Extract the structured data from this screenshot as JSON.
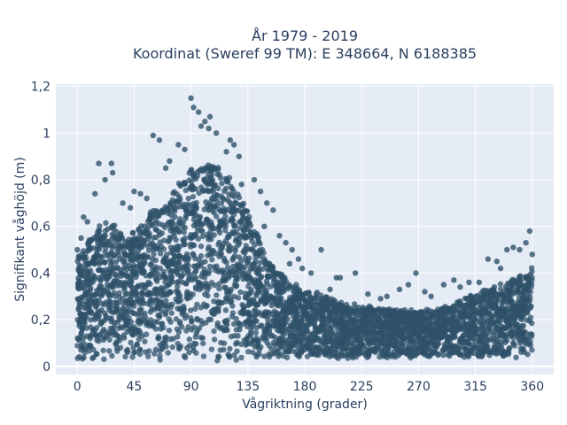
{
  "chart_data": {
    "type": "scatter",
    "title_lines": [
      "År 1979 - 2019",
      "Koordinat (Sweref 99 TM): E 348664, N 6188385"
    ],
    "xlabel": "Vågriktning (grader)",
    "ylabel": "Signifikant våghöjd (m)",
    "xlim": [
      -17,
      377
    ],
    "ylim": [
      -0.035,
      1.21
    ],
    "xticks": [
      0,
      45,
      90,
      135,
      180,
      225,
      270,
      315,
      360
    ],
    "xtick_labels": [
      "0",
      "45",
      "90",
      "135",
      "180",
      "225",
      "270",
      "315",
      "360"
    ],
    "yticks": [
      0,
      0.2,
      0.4,
      0.6,
      0.8,
      1,
      1.2
    ],
    "ytick_labels": [
      "0",
      "0,2",
      "0,4",
      "0,6",
      "0,8",
      "1",
      "1,2"
    ],
    "grid": true,
    "background": "#e5ecf6",
    "marker_color": "#2f5269",
    "envelope": {
      "x": [
        0,
        10,
        20,
        30,
        40,
        50,
        60,
        70,
        80,
        90,
        100,
        110,
        120,
        130,
        140,
        150,
        160,
        170,
        180,
        190,
        200,
        210,
        220,
        230,
        240,
        250,
        260,
        270,
        280,
        290,
        300,
        310,
        320,
        330,
        340,
        350,
        360
      ],
      "y_high": [
        0.47,
        0.55,
        0.62,
        0.6,
        0.55,
        0.6,
        0.68,
        0.7,
        0.78,
        0.84,
        0.87,
        0.87,
        0.82,
        0.72,
        0.6,
        0.47,
        0.4,
        0.35,
        0.33,
        0.31,
        0.29,
        0.27,
        0.26,
        0.25,
        0.25,
        0.24,
        0.24,
        0.24,
        0.24,
        0.25,
        0.27,
        0.3,
        0.32,
        0.34,
        0.36,
        0.39,
        0.42
      ],
      "y_low": [
        0.03,
        0.03,
        0.03,
        0.03,
        0.03,
        0.03,
        0.03,
        0.03,
        0.03,
        0.03,
        0.03,
        0.03,
        0.03,
        0.03,
        0.03,
        0.03,
        0.03,
        0.04,
        0.04,
        0.04,
        0.04,
        0.04,
        0.04,
        0.04,
        0.04,
        0.04,
        0.04,
        0.04,
        0.04,
        0.04,
        0.04,
        0.04,
        0.04,
        0.04,
        0.04,
        0.04,
        0.04
      ]
    },
    "outliers": [
      {
        "x": 90,
        "y": 1.15
      },
      {
        "x": 92,
        "y": 1.11
      },
      {
        "x": 96,
        "y": 1.09
      },
      {
        "x": 101,
        "y": 1.05
      },
      {
        "x": 105,
        "y": 1.07
      },
      {
        "x": 98,
        "y": 1.03
      },
      {
        "x": 104,
        "y": 1.02
      },
      {
        "x": 110,
        "y": 1.0
      },
      {
        "x": 60,
        "y": 0.99
      },
      {
        "x": 65,
        "y": 0.97
      },
      {
        "x": 80,
        "y": 0.95
      },
      {
        "x": 85,
        "y": 0.93
      },
      {
        "x": 121,
        "y": 0.97
      },
      {
        "x": 124,
        "y": 0.95
      },
      {
        "x": 128,
        "y": 0.9
      },
      {
        "x": 118,
        "y": 0.92
      },
      {
        "x": 17,
        "y": 0.87
      },
      {
        "x": 27,
        "y": 0.87
      },
      {
        "x": 28,
        "y": 0.83
      },
      {
        "x": 22,
        "y": 0.8
      },
      {
        "x": 14,
        "y": 0.74
      },
      {
        "x": 45,
        "y": 0.75
      },
      {
        "x": 50,
        "y": 0.74
      },
      {
        "x": 36,
        "y": 0.7
      },
      {
        "x": 42,
        "y": 0.68
      },
      {
        "x": 55,
        "y": 0.72
      },
      {
        "x": 70,
        "y": 0.85
      },
      {
        "x": 73,
        "y": 0.88
      },
      {
        "x": 140,
        "y": 0.8
      },
      {
        "x": 145,
        "y": 0.75
      },
      {
        "x": 150,
        "y": 0.7
      },
      {
        "x": 155,
        "y": 0.67
      },
      {
        "x": 148,
        "y": 0.6
      },
      {
        "x": 160,
        "y": 0.56
      },
      {
        "x": 165,
        "y": 0.53
      },
      {
        "x": 170,
        "y": 0.5
      },
      {
        "x": 175,
        "y": 0.46
      },
      {
        "x": 168,
        "y": 0.44
      },
      {
        "x": 178,
        "y": 0.42
      },
      {
        "x": 185,
        "y": 0.4
      },
      {
        "x": 193,
        "y": 0.5
      },
      {
        "x": 205,
        "y": 0.38
      },
      {
        "x": 208,
        "y": 0.38
      },
      {
        "x": 220,
        "y": 0.4
      },
      {
        "x": 200,
        "y": 0.33
      },
      {
        "x": 230,
        "y": 0.31
      },
      {
        "x": 240,
        "y": 0.29
      },
      {
        "x": 245,
        "y": 0.3
      },
      {
        "x": 255,
        "y": 0.33
      },
      {
        "x": 262,
        "y": 0.35
      },
      {
        "x": 268,
        "y": 0.4
      },
      {
        "x": 275,
        "y": 0.32
      },
      {
        "x": 280,
        "y": 0.3
      },
      {
        "x": 290,
        "y": 0.35
      },
      {
        "x": 298,
        "y": 0.37
      },
      {
        "x": 303,
        "y": 0.34
      },
      {
        "x": 310,
        "y": 0.36
      },
      {
        "x": 318,
        "y": 0.36
      },
      {
        "x": 325,
        "y": 0.46
      },
      {
        "x": 332,
        "y": 0.45
      },
      {
        "x": 340,
        "y": 0.5
      },
      {
        "x": 345,
        "y": 0.51
      },
      {
        "x": 350,
        "y": 0.5
      },
      {
        "x": 355,
        "y": 0.53
      },
      {
        "x": 358,
        "y": 0.58
      },
      {
        "x": 5,
        "y": 0.64
      },
      {
        "x": 8,
        "y": 0.62
      },
      {
        "x": 3,
        "y": 0.55
      },
      {
        "x": 0,
        "y": 0.5
      },
      {
        "x": 360,
        "y": 0.48
      },
      {
        "x": 335,
        "y": 0.42
      },
      {
        "x": 130,
        "y": 0.78
      }
    ]
  }
}
